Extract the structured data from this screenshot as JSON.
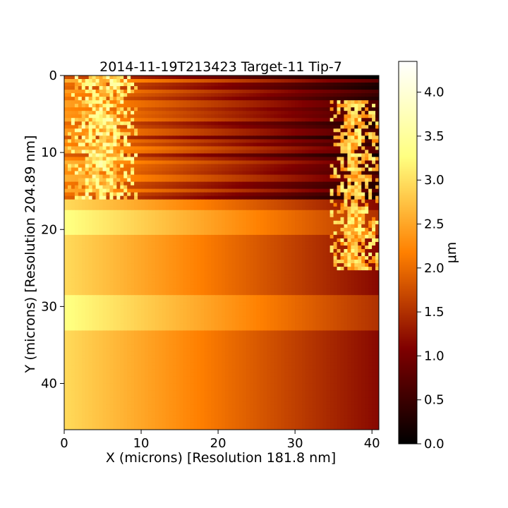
{
  "chart_data": {
    "type": "heatmap",
    "title": "2014-11-19T213423 Target-11 Tip-7",
    "xlabel": "X (microns) [Resolution 181.8 nm]",
    "ylabel": "Y (microns) [Resolution 204.89 nm]",
    "xlim": [
      0,
      40.9
    ],
    "ylim": [
      46,
      0
    ],
    "x_ticks": [
      0,
      10,
      20,
      30,
      40
    ],
    "y_ticks": [
      0,
      10,
      20,
      30,
      40
    ],
    "colorbar": {
      "label": "μm",
      "colormap": "afmhot",
      "range": [
        0.0,
        4.35
      ],
      "ticks": [
        "0.0",
        "0.5",
        "1.0",
        "1.5",
        "2.0",
        "2.5",
        "3.0",
        "3.5",
        "4.0"
      ]
    },
    "surface_model": {
      "description_of_values": "height in μm; base plane decreases from left to right",
      "left_edge_height": 2.95,
      "right_edge_height": 1.15,
      "striped_band_y": [
        0,
        16
      ],
      "striped_band_height": 0.9,
      "bright_bands": [
        {
          "y": [
            17.6,
            20.5
          ],
          "offset": 0.35
        },
        {
          "y": [
            28.7,
            33.2
          ],
          "offset": 0.35
        }
      ],
      "features": [
        {
          "name": "left rough ridge",
          "x": [
            0.5,
            9.5
          ],
          "y": [
            0,
            16
          ],
          "height": 3.2
        },
        {
          "name": "right rough ridge",
          "x": [
            34.5,
            40.9
          ],
          "y": [
            3,
            25.5
          ],
          "height": 2.9
        }
      ]
    }
  }
}
